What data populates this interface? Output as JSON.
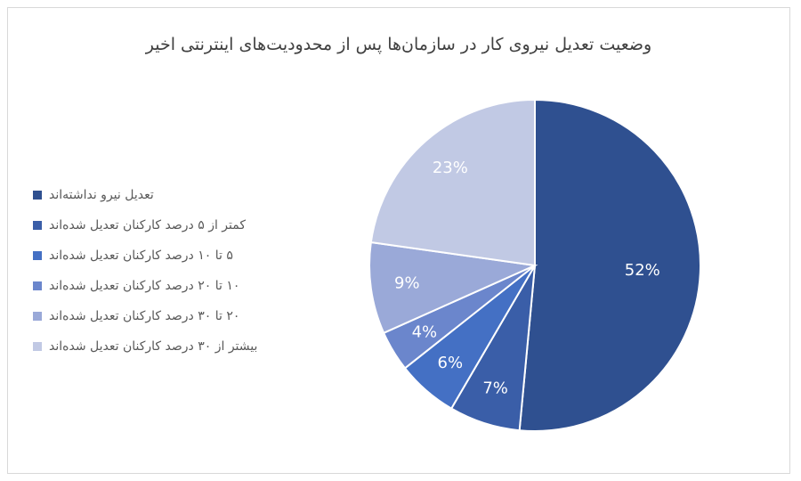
{
  "chart_data": {
    "type": "pie",
    "title": "وضعیت تعدیل نیروی کار در سازمان‌ها پس از محدودیت‌های اینترنتی اخیر",
    "legend_position": "left",
    "slices": [
      {
        "label": "تعدیل نیرو نداشته‌اند",
        "value": 52,
        "display": "52%",
        "color": "#2f5090"
      },
      {
        "label": "کمتر از ۵ درصد کارکنان تعدیل شده‌اند",
        "value": 7,
        "display": "7%",
        "color": "#3a5ea8"
      },
      {
        "label": "۵ تا ۱۰ درصد کارکنان تعدیل شده‌اند",
        "value": 6,
        "display": "6%",
        "color": "#4470c4"
      },
      {
        "label": "۱۰ تا ۲۰ درصد کارکنان تعدیل شده‌اند",
        "value": 4,
        "display": "4%",
        "color": "#6b86cc"
      },
      {
        "label": "۲۰ تا ۳۰ درصد کارکنان تعدیل شده‌اند",
        "value": 9,
        "display": "9%",
        "color": "#9aa9d8"
      },
      {
        "label": "بیشتر از ۳۰ درصد کارکنان تعدیل شده‌اند",
        "value": 23,
        "display": "23%",
        "color": "#c1c9e4"
      }
    ]
  }
}
